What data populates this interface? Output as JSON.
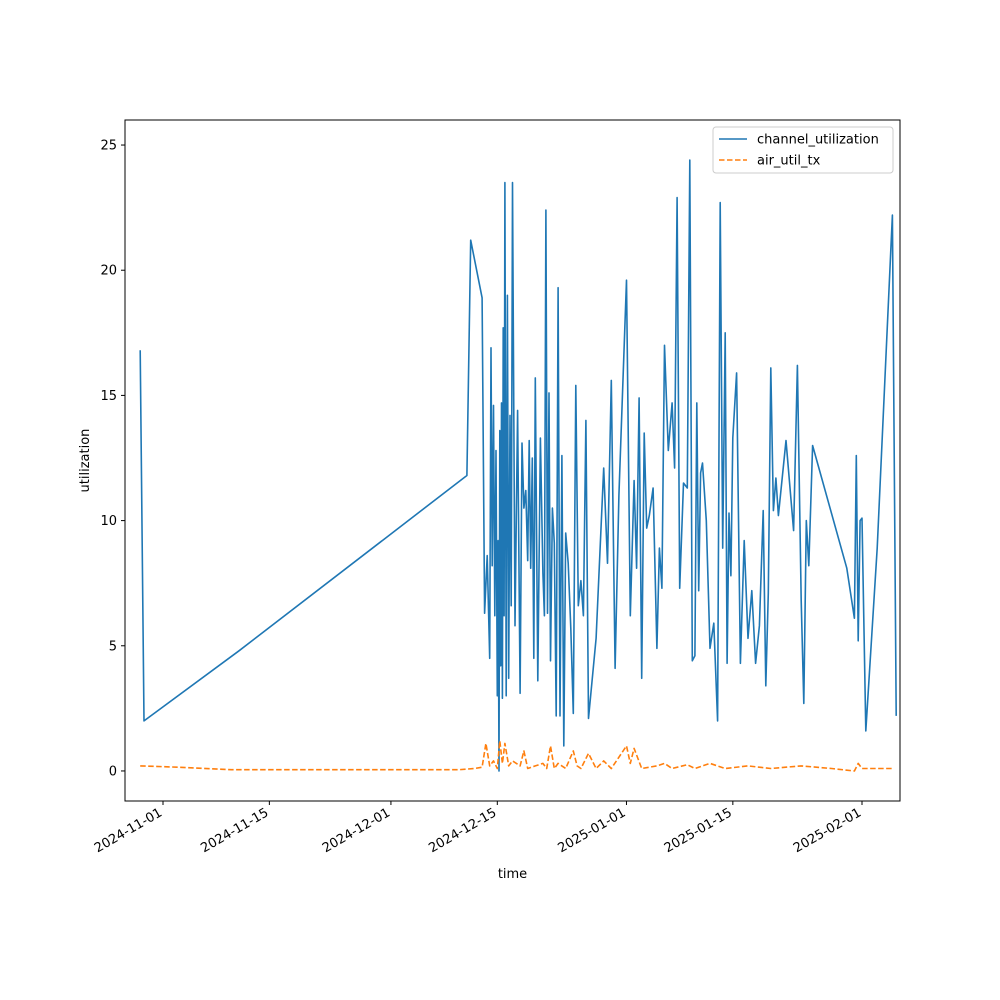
{
  "chart_data": {
    "type": "line",
    "xlabel": "time",
    "ylabel": "utilization",
    "xlim": [
      "2024-10-27",
      "2025-02-06"
    ],
    "ylim": [
      -1.2,
      26.0
    ],
    "x_ticks": [
      "2024-11-01",
      "2024-11-15",
      "2024-12-01",
      "2024-12-15",
      "2025-01-01",
      "2025-01-15",
      "2025-02-01"
    ],
    "y_ticks": [
      0,
      5,
      10,
      15,
      20,
      25
    ],
    "legend_position": "top-right",
    "grid": false,
    "series": [
      {
        "name": "channel_utilization",
        "color": "#1f77b4",
        "style": "solid",
        "points": [
          [
            "2024-10-29",
            16.8
          ],
          [
            "2024-10-29",
            2.0
          ],
          [
            "2024-11-11",
            4.8
          ],
          [
            "2024-12-11",
            11.8
          ],
          [
            "2024-12-11",
            21.2
          ],
          [
            "2024-12-13",
            18.9
          ],
          [
            "2024-12-13",
            6.3
          ],
          [
            "2024-12-13",
            8.6
          ],
          [
            "2024-12-14",
            4.5
          ],
          [
            "2024-12-14",
            16.9
          ],
          [
            "2024-12-14",
            8.2
          ],
          [
            "2024-12-14",
            14.6
          ],
          [
            "2024-12-14",
            6.2
          ],
          [
            "2024-12-14",
            12.8
          ],
          [
            "2024-12-15",
            3.0
          ],
          [
            "2024-12-15",
            9.2
          ],
          [
            "2024-12-15",
            0.0
          ],
          [
            "2024-12-15",
            13.6
          ],
          [
            "2024-12-15",
            4.2
          ],
          [
            "2024-12-15",
            14.7
          ],
          [
            "2024-12-15",
            2.9
          ],
          [
            "2024-12-15",
            17.7
          ],
          [
            "2024-12-15",
            6.2
          ],
          [
            "2024-12-16",
            23.5
          ],
          [
            "2024-12-16",
            3.0
          ],
          [
            "2024-12-16",
            19.0
          ],
          [
            "2024-12-16",
            3.7
          ],
          [
            "2024-12-16",
            14.2
          ],
          [
            "2024-12-16",
            6.6
          ],
          [
            "2024-12-17",
            23.5
          ],
          [
            "2024-12-17",
            5.8
          ],
          [
            "2024-12-17",
            14.4
          ],
          [
            "2024-12-18",
            3.1
          ],
          [
            "2024-12-18",
            13.1
          ],
          [
            "2024-12-18",
            10.5
          ],
          [
            "2024-12-18",
            11.2
          ],
          [
            "2024-12-19",
            8.4
          ],
          [
            "2024-12-19",
            13.2
          ],
          [
            "2024-12-19",
            8.1
          ],
          [
            "2024-12-19",
            12.5
          ],
          [
            "2024-12-19",
            4.5
          ],
          [
            "2024-12-20",
            15.7
          ],
          [
            "2024-12-20",
            3.6
          ],
          [
            "2024-12-20",
            13.3
          ],
          [
            "2024-12-21",
            7.9
          ],
          [
            "2024-12-21",
            6.2
          ],
          [
            "2024-12-21",
            22.4
          ],
          [
            "2024-12-21",
            6.3
          ],
          [
            "2024-12-21",
            15.1
          ],
          [
            "2024-12-22",
            4.4
          ],
          [
            "2024-12-22",
            10.5
          ],
          [
            "2024-12-22",
            9.1
          ],
          [
            "2024-12-22",
            2.2
          ],
          [
            "2024-12-23",
            19.3
          ],
          [
            "2024-12-23",
            2.2
          ],
          [
            "2024-12-23",
            12.6
          ],
          [
            "2024-12-23",
            1.0
          ],
          [
            "2024-12-24",
            9.5
          ],
          [
            "2024-12-24",
            8.3
          ],
          [
            "2024-12-24",
            5.7
          ],
          [
            "2024-12-25",
            2.3
          ],
          [
            "2024-12-25",
            15.4
          ],
          [
            "2024-12-25",
            6.6
          ],
          [
            "2024-12-26",
            7.6
          ],
          [
            "2024-12-26",
            6.2
          ],
          [
            "2024-12-26",
            14.0
          ],
          [
            "2024-12-27",
            2.1
          ],
          [
            "2024-12-28",
            5.3
          ],
          [
            "2024-12-29",
            12.1
          ],
          [
            "2024-12-29",
            8.3
          ],
          [
            "2024-12-30",
            15.6
          ],
          [
            "2024-12-30",
            4.1
          ],
          [
            "2024-12-31",
            11.0
          ],
          [
            "2025-01-01",
            19.6
          ],
          [
            "2025-01-01",
            6.2
          ],
          [
            "2025-01-02",
            11.6
          ],
          [
            "2025-01-02",
            8.1
          ],
          [
            "2025-01-02",
            14.9
          ],
          [
            "2025-01-03",
            3.7
          ],
          [
            "2025-01-03",
            13.5
          ],
          [
            "2025-01-03",
            9.7
          ],
          [
            "2025-01-04",
            10.2
          ],
          [
            "2025-01-04",
            11.3
          ],
          [
            "2025-01-05",
            4.9
          ],
          [
            "2025-01-05",
            8.9
          ],
          [
            "2025-01-05",
            7.3
          ],
          [
            "2025-01-06",
            17.0
          ],
          [
            "2025-01-06",
            12.8
          ],
          [
            "2025-01-07",
            14.7
          ],
          [
            "2025-01-07",
            12.1
          ],
          [
            "2025-01-07",
            22.9
          ],
          [
            "2025-01-08",
            7.3
          ],
          [
            "2025-01-08",
            11.5
          ],
          [
            "2025-01-09",
            11.3
          ],
          [
            "2025-01-09",
            24.4
          ],
          [
            "2025-01-09",
            4.4
          ],
          [
            "2025-01-10",
            4.6
          ],
          [
            "2025-01-10",
            14.7
          ],
          [
            "2025-01-10",
            7.2
          ],
          [
            "2025-01-10",
            11.9
          ],
          [
            "2025-01-11",
            12.3
          ],
          [
            "2025-01-11",
            10.0
          ],
          [
            "2025-01-12",
            4.9
          ],
          [
            "2025-01-12",
            5.9
          ],
          [
            "2025-01-13",
            2.0
          ],
          [
            "2025-01-13",
            22.7
          ],
          [
            "2025-01-13",
            8.9
          ],
          [
            "2025-01-14",
            17.5
          ],
          [
            "2025-01-14",
            4.3
          ],
          [
            "2025-01-14",
            10.3
          ],
          [
            "2025-01-14",
            7.8
          ],
          [
            "2025-01-15",
            13.3
          ],
          [
            "2025-01-15",
            15.9
          ],
          [
            "2025-01-16",
            4.3
          ],
          [
            "2025-01-16",
            9.2
          ],
          [
            "2025-01-17",
            5.3
          ],
          [
            "2025-01-17",
            7.2
          ],
          [
            "2025-01-18",
            4.3
          ],
          [
            "2025-01-18",
            5.8
          ],
          [
            "2025-01-19",
            10.4
          ],
          [
            "2025-01-19",
            3.4
          ],
          [
            "2025-01-19",
            7.1
          ],
          [
            "2025-01-20",
            16.1
          ],
          [
            "2025-01-20",
            10.4
          ],
          [
            "2025-01-20",
            11.7
          ],
          [
            "2025-01-21",
            10.2
          ],
          [
            "2025-01-22",
            13.2
          ],
          [
            "2025-01-23",
            9.6
          ],
          [
            "2025-01-23",
            16.2
          ],
          [
            "2025-01-24",
            6.8
          ],
          [
            "2025-01-24",
            2.7
          ],
          [
            "2025-01-24",
            10.0
          ],
          [
            "2025-01-25",
            8.2
          ],
          [
            "2025-01-25",
            13.0
          ],
          [
            "2025-01-30",
            8.1
          ],
          [
            "2025-01-31",
            6.1
          ],
          [
            "2025-01-31",
            12.6
          ],
          [
            "2025-01-31",
            5.2
          ],
          [
            "2025-01-31",
            10.0
          ],
          [
            "2025-02-01",
            10.1
          ],
          [
            "2025-02-01",
            1.6
          ],
          [
            "2025-02-03",
            8.9
          ],
          [
            "2025-02-05",
            22.2
          ],
          [
            "2025-02-05",
            2.2
          ]
        ]
      },
      {
        "name": "air_util_tx",
        "color": "#ff7f0e",
        "style": "dashed",
        "points": [
          [
            "2024-10-29",
            0.2
          ],
          [
            "2024-11-03",
            0.15
          ],
          [
            "2024-11-10",
            0.05
          ],
          [
            "2024-12-10",
            0.05
          ],
          [
            "2024-12-12",
            0.1
          ],
          [
            "2024-12-13",
            0.15
          ],
          [
            "2024-12-13",
            1.1
          ],
          [
            "2024-12-14",
            0.2
          ],
          [
            "2024-12-14",
            0.4
          ],
          [
            "2024-12-15",
            0.1
          ],
          [
            "2024-12-15",
            1.2
          ],
          [
            "2024-12-15",
            0.3
          ],
          [
            "2024-12-16",
            1.1
          ],
          [
            "2024-12-16",
            0.2
          ],
          [
            "2024-12-17",
            0.4
          ],
          [
            "2024-12-18",
            0.2
          ],
          [
            "2024-12-18",
            0.8
          ],
          [
            "2024-12-19",
            0.1
          ],
          [
            "2024-12-20",
            0.2
          ],
          [
            "2024-12-21",
            0.3
          ],
          [
            "2024-12-21",
            0.1
          ],
          [
            "2024-12-22",
            1.0
          ],
          [
            "2024-12-22",
            0.1
          ],
          [
            "2024-12-23",
            0.3
          ],
          [
            "2024-12-24",
            0.1
          ],
          [
            "2024-12-25",
            0.8
          ],
          [
            "2024-12-25",
            0.2
          ],
          [
            "2024-12-26",
            0.1
          ],
          [
            "2024-12-27",
            0.7
          ],
          [
            "2024-12-28",
            0.1
          ],
          [
            "2024-12-29",
            0.4
          ],
          [
            "2024-12-30",
            0.1
          ],
          [
            "2025-01-01",
            1.0
          ],
          [
            "2025-01-01",
            0.3
          ],
          [
            "2025-01-02",
            0.9
          ],
          [
            "2025-01-03",
            0.1
          ],
          [
            "2025-01-05",
            0.2
          ],
          [
            "2025-01-06",
            0.3
          ],
          [
            "2025-01-07",
            0.1
          ],
          [
            "2025-01-09",
            0.25
          ],
          [
            "2025-01-10",
            0.1
          ],
          [
            "2025-01-12",
            0.3
          ],
          [
            "2025-01-14",
            0.1
          ],
          [
            "2025-01-17",
            0.2
          ],
          [
            "2025-01-20",
            0.1
          ],
          [
            "2025-01-24",
            0.2
          ],
          [
            "2025-01-28",
            0.1
          ],
          [
            "2025-01-31",
            0.0
          ],
          [
            "2025-01-31",
            0.3
          ],
          [
            "2025-02-01",
            0.1
          ],
          [
            "2025-02-05",
            0.1
          ]
        ]
      }
    ]
  }
}
